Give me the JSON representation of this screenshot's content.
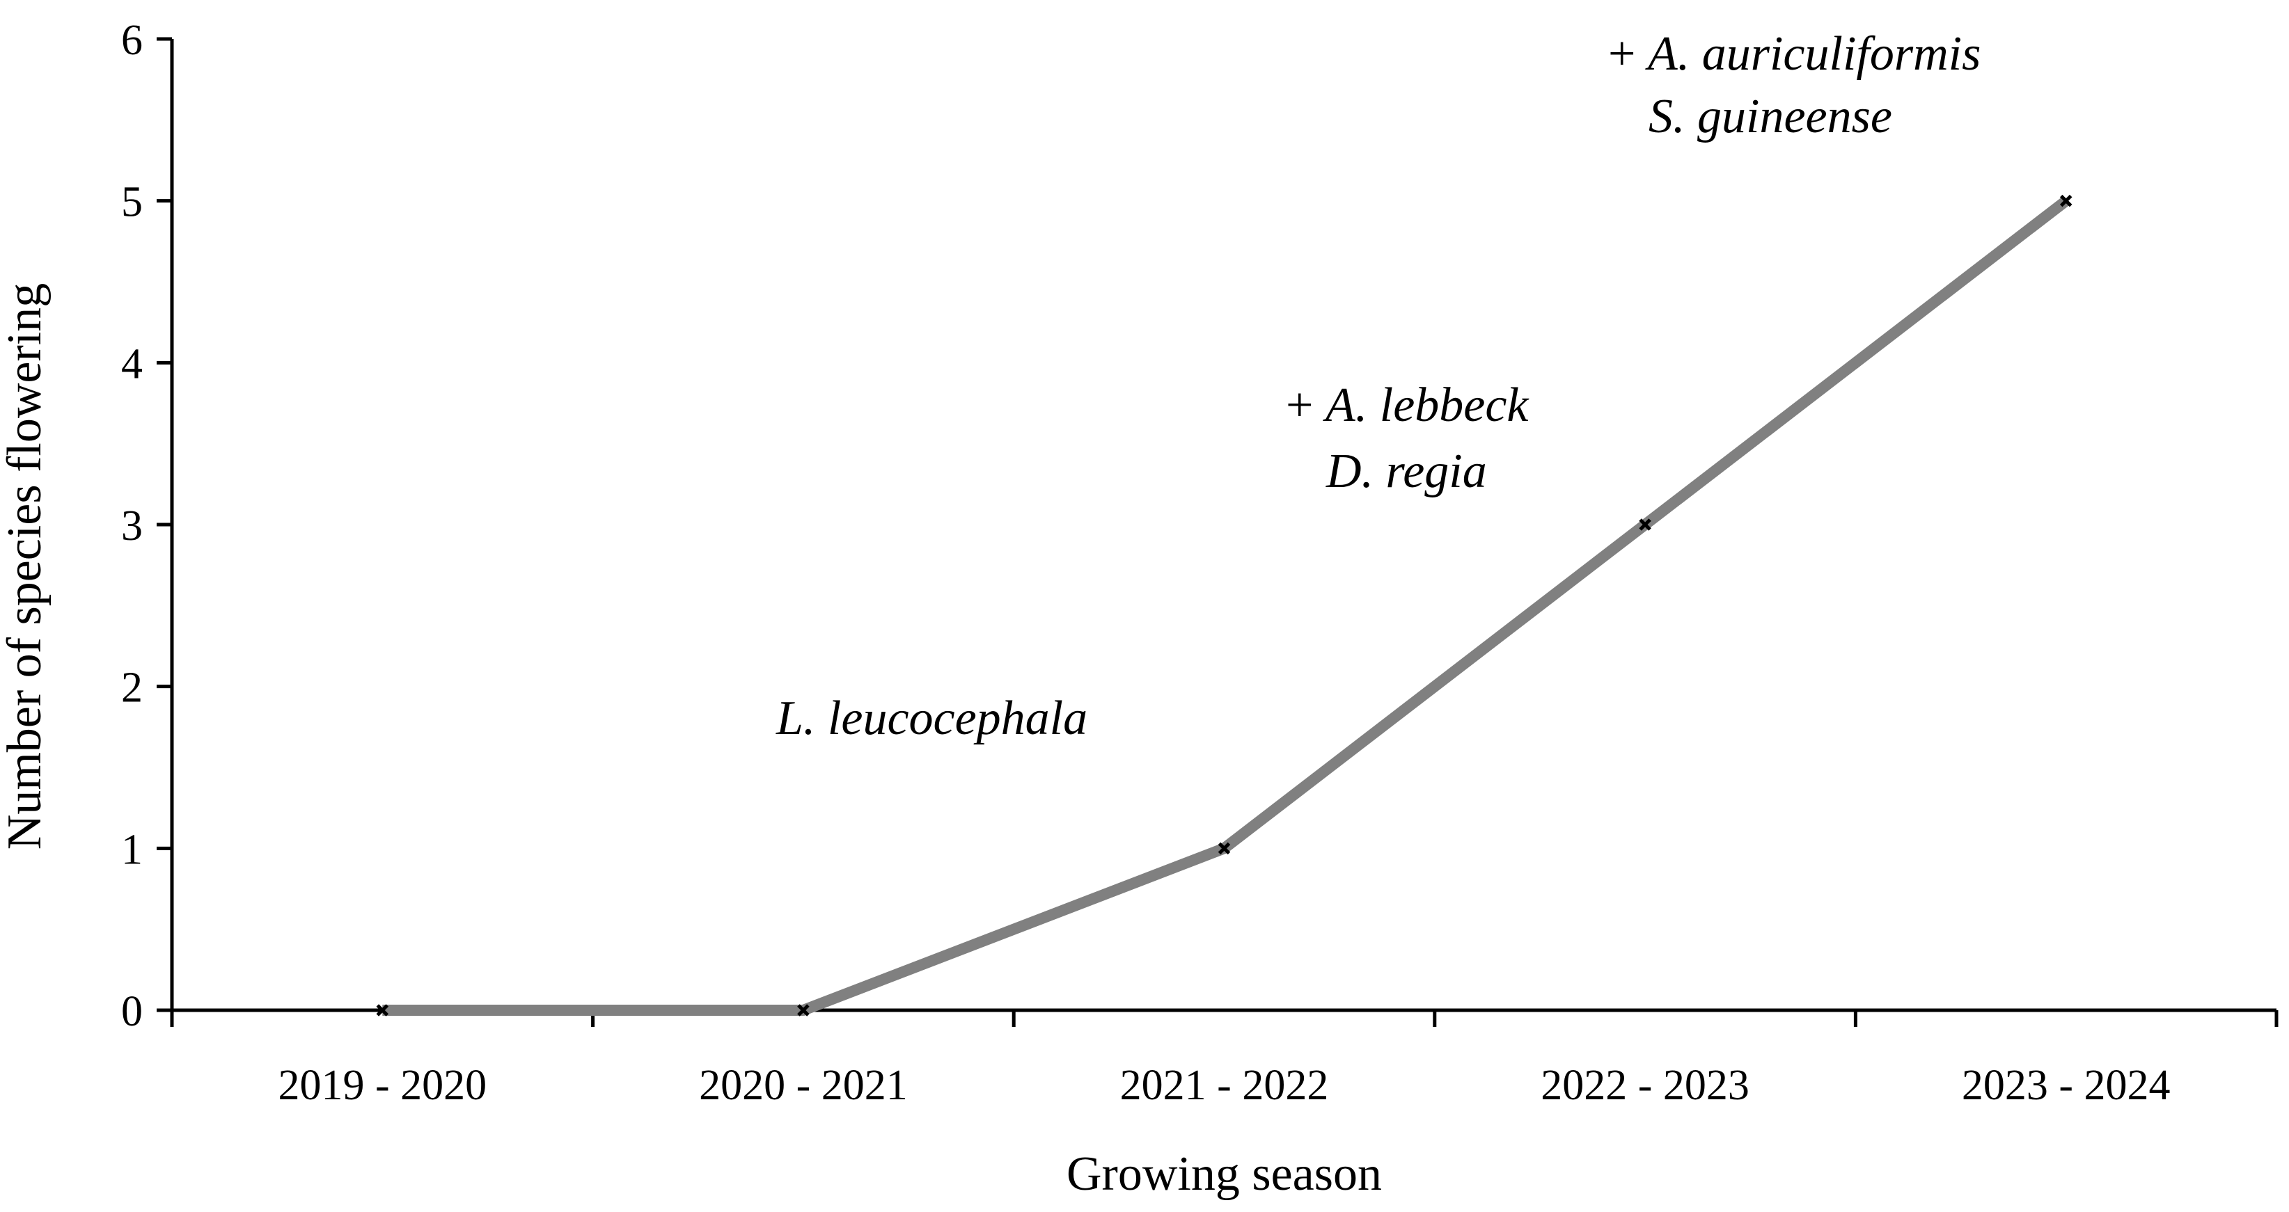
{
  "chart_data": {
    "type": "line",
    "title": "",
    "xlabel": "Growing season",
    "ylabel": "Number of species flowering",
    "categories": [
      "2019 - 2020",
      "2020 - 2021",
      "2021 - 2022",
      "2022 - 2023",
      "2023 - 2024"
    ],
    "series": [
      {
        "values": [
          0,
          0,
          1,
          3,
          5
        ],
        "color": "#808080",
        "marker": "x",
        "marker_color": "#000000"
      }
    ],
    "ylim": [
      0,
      6
    ],
    "yticks": [
      0,
      1,
      2,
      3,
      4,
      5,
      6
    ],
    "grid": false,
    "legend": "none",
    "annotations": [
      {
        "near_category": "2021 - 2022",
        "lines": [
          {
            "prefix": "",
            "text": "L. leucocephala"
          }
        ]
      },
      {
        "near_category": "2022 - 2023",
        "lines": [
          {
            "prefix": "+ ",
            "text": "A. lebbeck"
          },
          {
            "prefix": "",
            "text": "D. regia"
          }
        ]
      },
      {
        "near_category": "2023 - 2024",
        "lines": [
          {
            "prefix": "+ ",
            "text": "A. auriculiformis"
          },
          {
            "prefix": "",
            "text": "S. guineense"
          }
        ]
      }
    ]
  }
}
